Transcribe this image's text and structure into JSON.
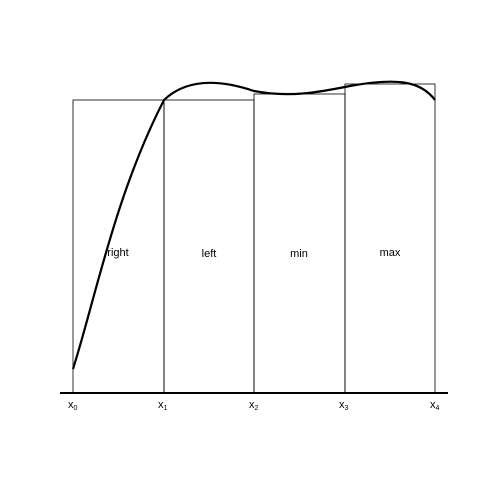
{
  "diagram": {
    "ticks": [
      {
        "base": "x",
        "sub": "0"
      },
      {
        "base": "x",
        "sub": "1"
      },
      {
        "base": "x",
        "sub": "2"
      },
      {
        "base": "x",
        "sub": "3"
      },
      {
        "base": "x",
        "sub": "4"
      }
    ],
    "rectangles": [
      {
        "label": "right"
      },
      {
        "label": "left"
      },
      {
        "label": "min"
      },
      {
        "label": "max"
      }
    ],
    "colors": {
      "stroke": "#000000",
      "background": "#ffffff"
    }
  }
}
